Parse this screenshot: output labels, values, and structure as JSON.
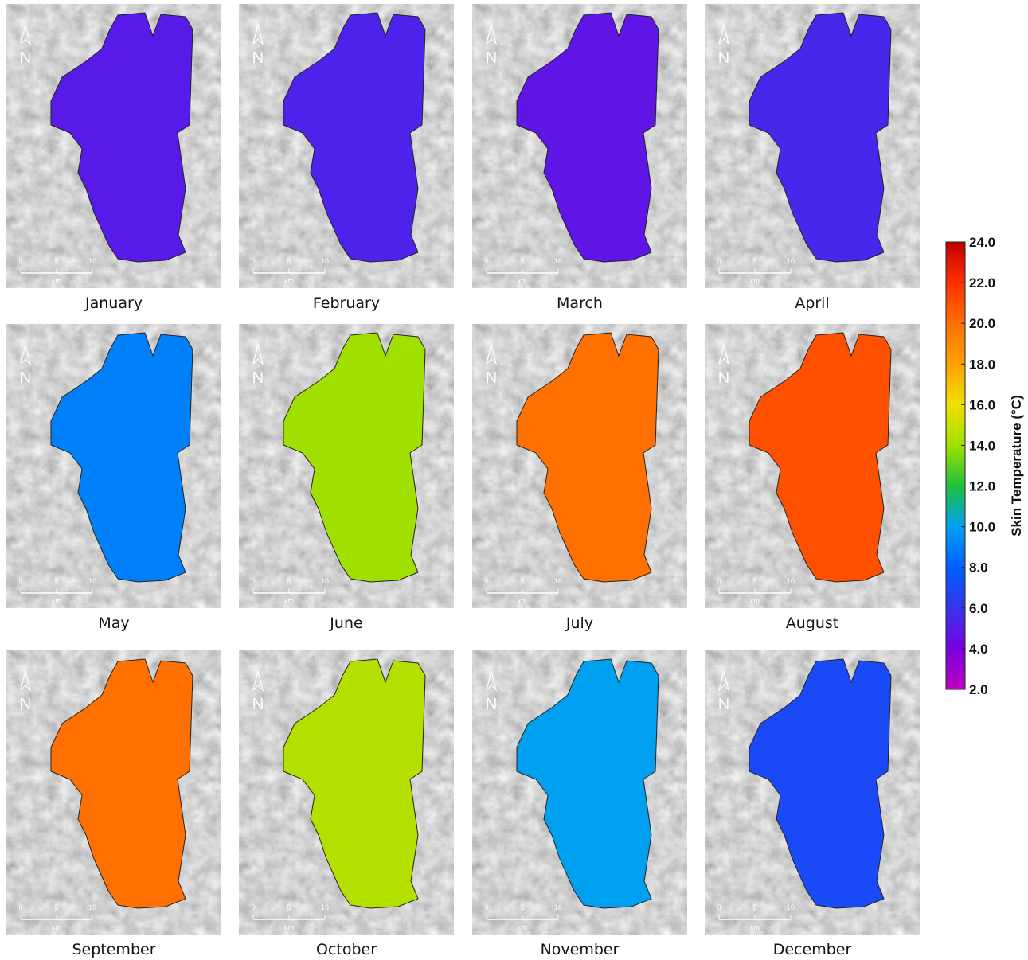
{
  "panels": [
    {
      "label": "January",
      "mean_temperature": 5.0
    },
    {
      "label": "February",
      "mean_temperature": 5.3
    },
    {
      "label": "March",
      "mean_temperature": 4.8
    },
    {
      "label": "April",
      "mean_temperature": 5.5
    },
    {
      "label": "May",
      "mean_temperature": 9.0
    },
    {
      "label": "June",
      "mean_temperature": 14.0
    },
    {
      "label": "July",
      "mean_temperature": 20.0
    },
    {
      "label": "August",
      "mean_temperature": 21.0
    },
    {
      "label": "September",
      "mean_temperature": 20.0
    },
    {
      "label": "October",
      "mean_temperature": 14.5
    },
    {
      "label": "November",
      "mean_temperature": 10.0
    },
    {
      "label": "December",
      "mean_temperature": 7.0
    }
  ],
  "map_text": {
    "north": "N",
    "scale_labels": [
      "0",
      "5",
      "10"
    ],
    "scale_unit": "km"
  },
  "colorbar": {
    "title": "Skin Temperature (°C)",
    "range": [
      2,
      24
    ],
    "ticks": [
      {
        "value": 2,
        "label": "2.0"
      },
      {
        "value": 4,
        "label": "4.0"
      },
      {
        "value": 6,
        "label": "6.0"
      },
      {
        "value": 8,
        "label": "8.0"
      },
      {
        "value": 10,
        "label": "10.0"
      },
      {
        "value": 12,
        "label": "12.0"
      },
      {
        "value": 14,
        "label": "14.0"
      },
      {
        "value": 16,
        "label": "16.0"
      },
      {
        "value": 18,
        "label": "18.0"
      },
      {
        "value": 20,
        "label": "20.0"
      },
      {
        "value": 22,
        "label": "22.0"
      },
      {
        "value": 24,
        "label": "24.0"
      }
    ],
    "colormap": [
      "#c000c0",
      "#7a00e0",
      "#3434f0",
      "#0060ff",
      "#00a0f0",
      "#20c040",
      "#a0e000",
      "#f0e000",
      "#ffa000",
      "#ff7000",
      "#ff3000",
      "#c00000"
    ]
  }
}
